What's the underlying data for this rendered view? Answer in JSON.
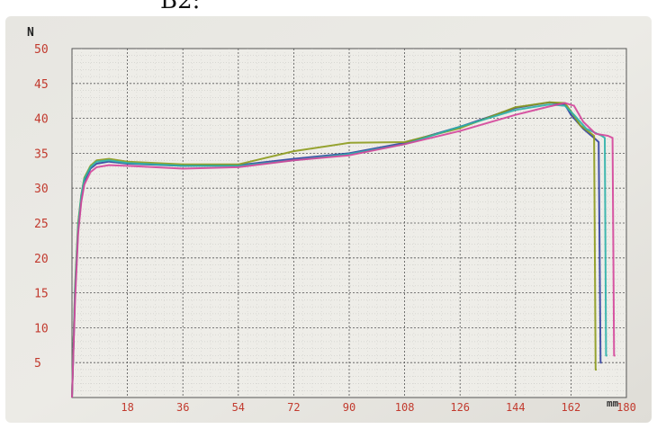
{
  "heading": "B2:",
  "chart_data": {
    "type": "line",
    "title": "",
    "ylabel": "N",
    "xlabel": "mm",
    "xlim": [
      0,
      180
    ],
    "ylim": [
      0,
      50
    ],
    "xticks": [
      18,
      36,
      54,
      72,
      90,
      108,
      126,
      144,
      162,
      180
    ],
    "yticks": [
      5,
      10,
      15,
      20,
      25,
      30,
      35,
      40,
      45,
      50
    ],
    "grid": true,
    "series": [
      {
        "color": "#2f3fa0",
        "points": [
          [
            0,
            0
          ],
          [
            1,
            15
          ],
          [
            2,
            24
          ],
          [
            3,
            28.5
          ],
          [
            4,
            31
          ],
          [
            6,
            32.8
          ],
          [
            8,
            33.5
          ],
          [
            12,
            33.8
          ],
          [
            18,
            33.5
          ],
          [
            36,
            33.2
          ],
          [
            54,
            33.3
          ],
          [
            72,
            34.2
          ],
          [
            90,
            35.0
          ],
          [
            108,
            36.5
          ],
          [
            126,
            38.8
          ],
          [
            144,
            41.5
          ],
          [
            155,
            42.3
          ],
          [
            160,
            42.0
          ],
          [
            162,
            40.5
          ],
          [
            166,
            38.5
          ],
          [
            170,
            37.0
          ],
          [
            171,
            36.6
          ],
          [
            171.6,
            5
          ],
          [
            172,
            5
          ]
        ]
      },
      {
        "color": "#8c9a1c",
        "points": [
          [
            0,
            0
          ],
          [
            1,
            16
          ],
          [
            2,
            25
          ],
          [
            3,
            29
          ],
          [
            4,
            31.5
          ],
          [
            6,
            33.2
          ],
          [
            8,
            34.0
          ],
          [
            12,
            34.2
          ],
          [
            18,
            33.8
          ],
          [
            36,
            33.4
          ],
          [
            54,
            33.4
          ],
          [
            72,
            35.3
          ],
          [
            90,
            36.5
          ],
          [
            108,
            36.6
          ],
          [
            126,
            38.6
          ],
          [
            144,
            41.6
          ],
          [
            155,
            42.3
          ],
          [
            160,
            42.2
          ],
          [
            162,
            41.0
          ],
          [
            165,
            39.0
          ],
          [
            168,
            38.0
          ],
          [
            169.5,
            37.5
          ],
          [
            170,
            4
          ],
          [
            170.4,
            4
          ]
        ]
      },
      {
        "color": "#2bb0a8",
        "points": [
          [
            0,
            0
          ],
          [
            1,
            15.5
          ],
          [
            2,
            24.5
          ],
          [
            3,
            29
          ],
          [
            4,
            31.3
          ],
          [
            6,
            33.0
          ],
          [
            8,
            33.8
          ],
          [
            12,
            34.0
          ],
          [
            18,
            33.6
          ],
          [
            36,
            33.2
          ],
          [
            54,
            33.2
          ],
          [
            72,
            34.0
          ],
          [
            90,
            34.9
          ],
          [
            108,
            36.3
          ],
          [
            126,
            38.8
          ],
          [
            144,
            41.2
          ],
          [
            155,
            42.0
          ],
          [
            160,
            41.8
          ],
          [
            163,
            40.5
          ],
          [
            167,
            38.5
          ],
          [
            172,
            37.5
          ],
          [
            173,
            37.2
          ],
          [
            173.4,
            6
          ],
          [
            173.8,
            6
          ]
        ]
      },
      {
        "color": "#d4449a",
        "points": [
          [
            0,
            0
          ],
          [
            1,
            14
          ],
          [
            2,
            23.5
          ],
          [
            3,
            28
          ],
          [
            4,
            30.5
          ],
          [
            6,
            32.3
          ],
          [
            8,
            33.0
          ],
          [
            12,
            33.3
          ],
          [
            18,
            33.2
          ],
          [
            36,
            32.8
          ],
          [
            54,
            33.0
          ],
          [
            72,
            34.0
          ],
          [
            90,
            34.7
          ],
          [
            108,
            36.3
          ],
          [
            126,
            38.2
          ],
          [
            144,
            40.5
          ],
          [
            155,
            41.7
          ],
          [
            160,
            42.2
          ],
          [
            163,
            41.8
          ],
          [
            166,
            39.5
          ],
          [
            170,
            37.8
          ],
          [
            174,
            37.5
          ],
          [
            175.5,
            37.2
          ],
          [
            176,
            6
          ],
          [
            176.4,
            6
          ]
        ]
      }
    ]
  }
}
